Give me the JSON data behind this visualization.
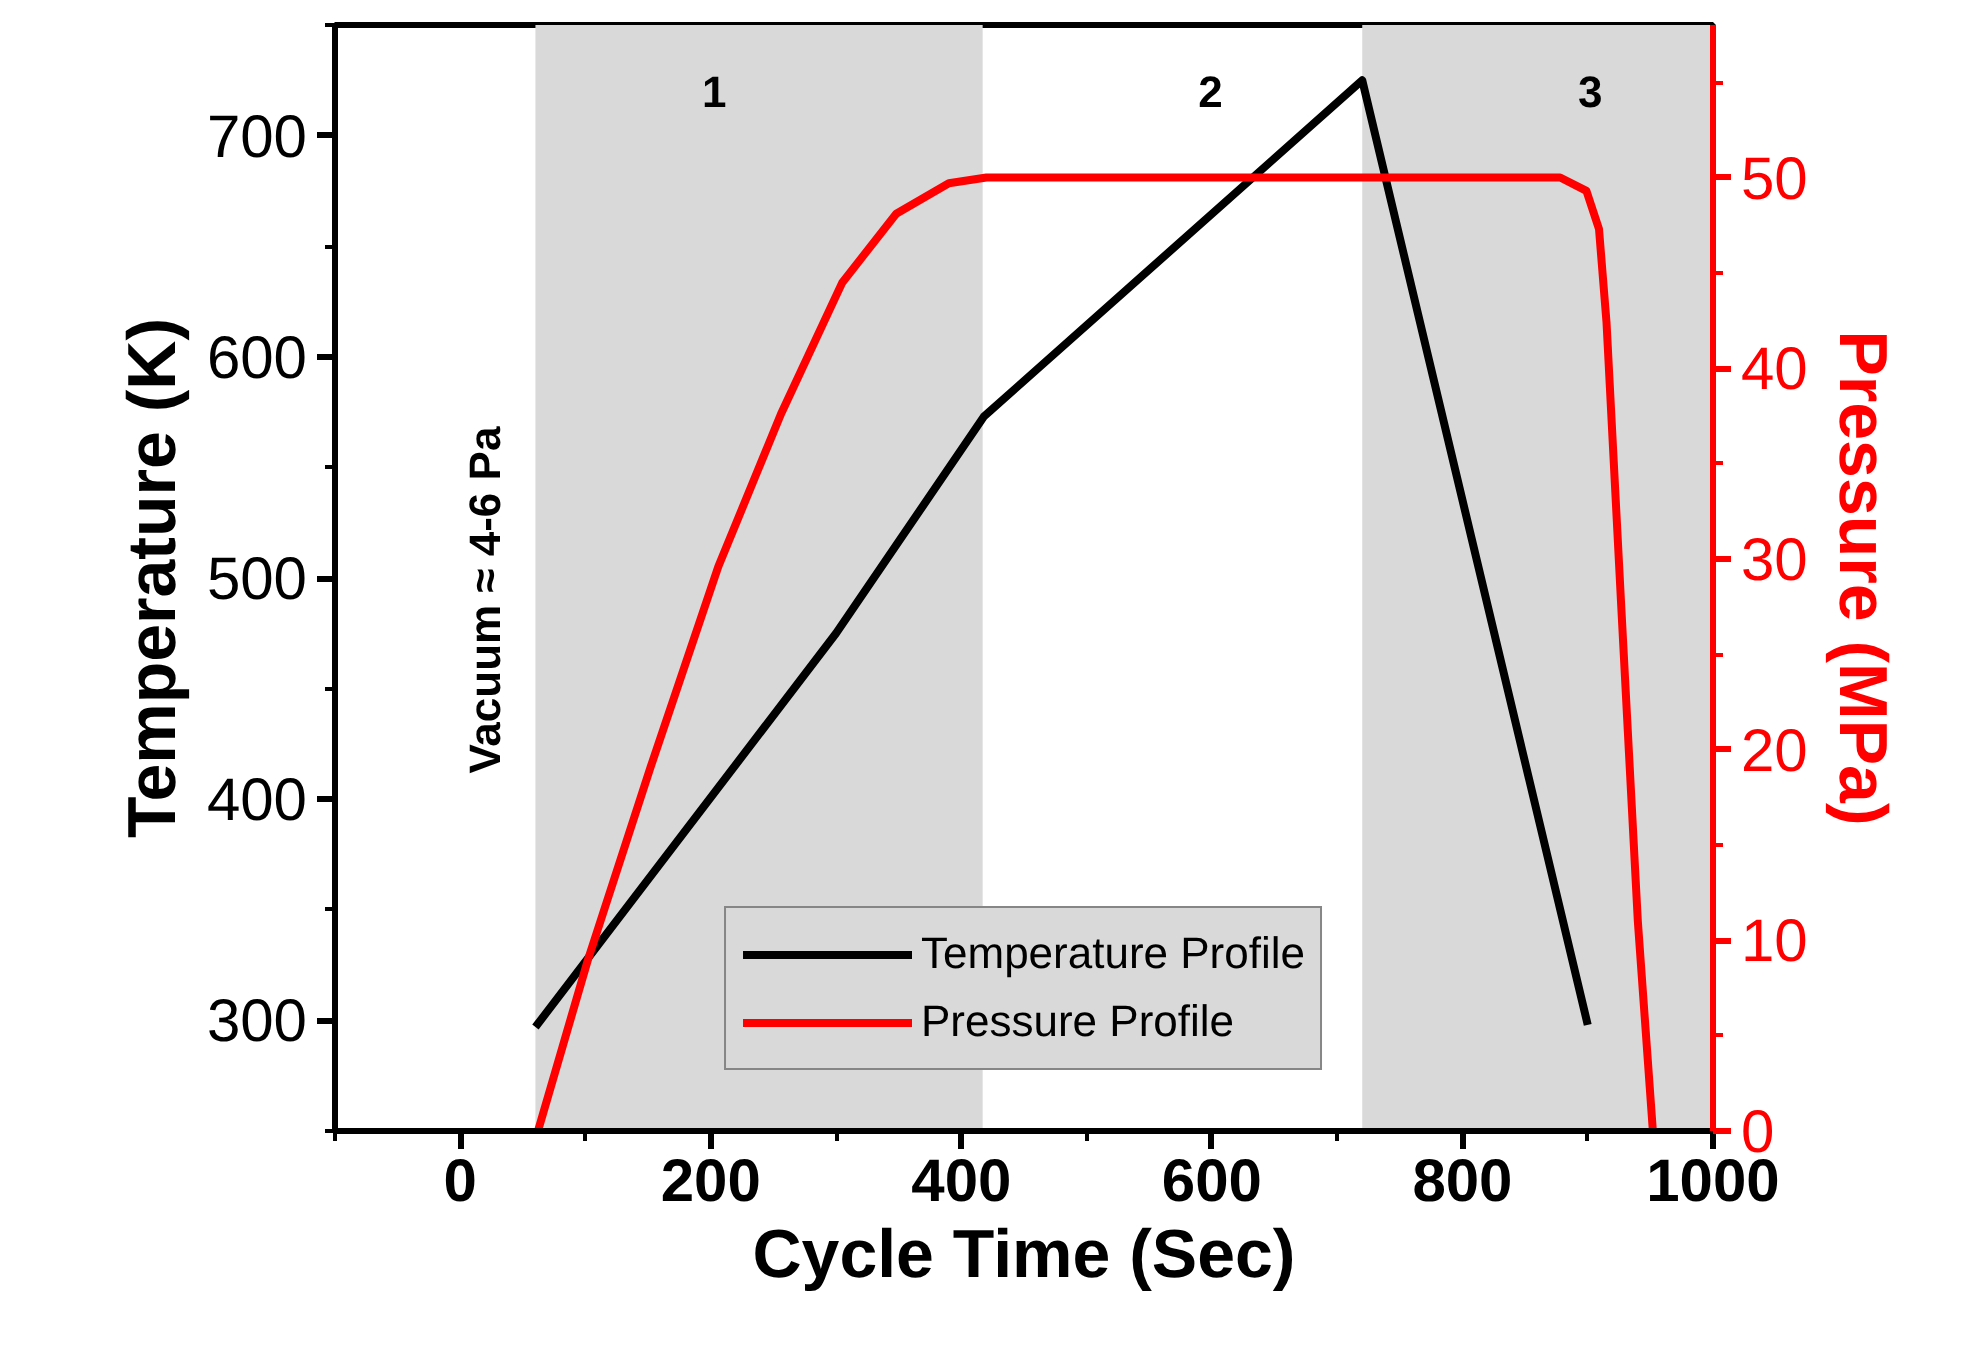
{
  "chart_data": {
    "type": "line",
    "xlabel": "Cycle Time (Sec)",
    "ylabel": "Temperature (K)",
    "y2label": "Pressure (MPa)",
    "xlim": [
      -100,
      1000
    ],
    "xticks": [
      0,
      200,
      400,
      600,
      800,
      1000
    ],
    "ylim": [
      250,
      750
    ],
    "yticks": [
      300,
      400,
      500,
      600,
      700
    ],
    "y2lim": [
      0,
      58
    ],
    "y2ticks": [
      0,
      10,
      20,
      30,
      40,
      50
    ],
    "series": [
      {
        "name": "Temperature Profile",
        "color": "#000000",
        "x": [
          60,
          300,
          418,
          720,
          900
        ],
        "values": [
          297,
          475,
          573,
          725,
          298
        ]
      },
      {
        "name": "Pressure Profile",
        "color": "#ff0000",
        "axis": "y2",
        "x": [
          62,
          102,
          152,
          206,
          256,
          305,
          348,
          390,
          420,
          878,
          899,
          909,
          915,
          927,
          940,
          952
        ],
        "values": [
          0,
          9.0,
          19.1,
          29.6,
          37.6,
          44.5,
          48.1,
          49.7,
          50,
          50,
          49.3,
          47.3,
          42.4,
          27.2,
          11.0,
          0
        ]
      }
    ],
    "bands": [
      {
        "axis": "x",
        "from": 60,
        "to": 417,
        "color": "#d9d9d9"
      },
      {
        "axis": "x",
        "from": 720,
        "to": 1000,
        "color": "#d9d9d9"
      }
    ],
    "annotations": [
      "1",
      "2",
      "3",
      "Vacuum ≈ 4-6 Pa"
    ],
    "legend": "bottom",
    "grid": false,
    "line_style": "solid",
    "marker": "none"
  }
}
